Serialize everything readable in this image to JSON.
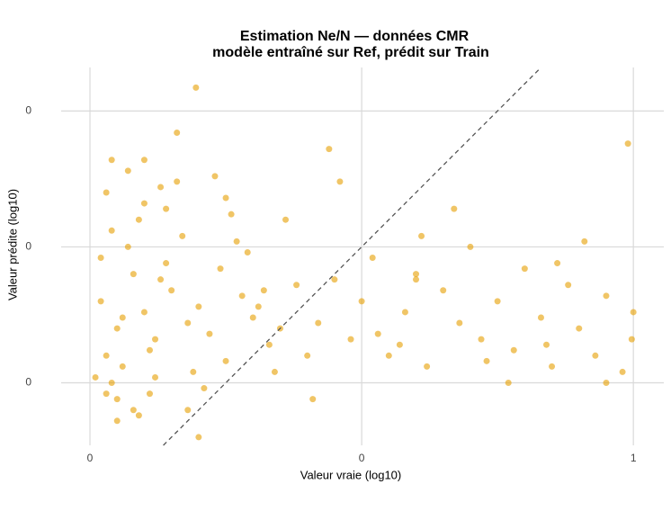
{
  "chart_data": {
    "type": "scatter",
    "title": "Estimation Ne/N — données CMR",
    "subtitle": "modèle entraîné sur Ref, prédit sur Train",
    "x_label": "Valeur vraie (log10)",
    "y_label": "Valeur prédite (log10)",
    "xlim": [
      -0.053,
      1.056
    ],
    "ylim": [
      0.135,
      0.83
    ],
    "xticks": [
      {
        "value": 0,
        "label": "0"
      },
      {
        "value": 0.5,
        "label": "0"
      },
      {
        "value": 1,
        "label": "1"
      }
    ],
    "yticks": [
      {
        "value": 0.25,
        "label": "0"
      },
      {
        "value": 0.5,
        "label": "0"
      },
      {
        "value": 0.75,
        "label": "0"
      }
    ],
    "grid": true,
    "identity_line": true,
    "color": "#E69F00",
    "x": [
      0.195,
      0.04,
      0.02,
      0.05,
      0.03,
      0.08,
      0.1,
      0.12,
      0.04,
      0.07,
      0.15,
      0.18,
      0.06,
      0.09,
      0.11,
      0.14,
      0.2,
      0.22,
      0.25,
      0.03,
      0.05,
      0.13,
      0.17,
      0.28,
      0.3,
      0.33,
      0.08,
      0.1,
      0.19,
      0.24,
      0.35,
      0.38,
      0.4,
      0.02,
      0.06,
      0.12,
      0.16,
      0.21,
      0.27,
      0.31,
      0.42,
      0.45,
      0.48,
      0.5,
      0.52,
      0.55,
      0.58,
      0.6,
      0.62,
      0.65,
      0.68,
      0.7,
      0.72,
      0.75,
      0.78,
      0.8,
      0.83,
      0.85,
      0.88,
      0.9,
      0.93,
      0.95,
      0.98,
      1.0,
      0.04,
      0.09,
      0.14,
      0.23,
      0.29,
      0.36,
      0.44,
      0.53,
      0.61,
      0.73,
      0.86,
      0.99,
      0.01,
      0.07,
      0.11,
      0.18,
      0.26,
      0.34,
      0.46,
      0.57,
      0.67,
      0.77,
      0.91,
      0.997,
      0.05,
      0.16,
      0.32,
      0.41,
      0.2,
      0.1,
      0.03,
      0.25,
      0.6,
      0.84,
      0.95,
      0.13
    ],
    "y": [
      0.793,
      0.66,
      0.4,
      0.35,
      0.3,
      0.45,
      0.38,
      0.33,
      0.25,
      0.5,
      0.42,
      0.36,
      0.28,
      0.55,
      0.31,
      0.47,
      0.39,
      0.34,
      0.29,
      0.6,
      0.22,
      0.44,
      0.52,
      0.41,
      0.37,
      0.32,
      0.2,
      0.58,
      0.27,
      0.46,
      0.35,
      0.43,
      0.3,
      0.48,
      0.37,
      0.26,
      0.62,
      0.24,
      0.51,
      0.39,
      0.36,
      0.44,
      0.33,
      0.4,
      0.48,
      0.3,
      0.38,
      0.45,
      0.28,
      0.42,
      0.36,
      0.5,
      0.33,
      0.4,
      0.31,
      0.46,
      0.37,
      0.28,
      0.43,
      0.35,
      0.3,
      0.41,
      0.27,
      0.38,
      0.53,
      0.19,
      0.57,
      0.63,
      0.49,
      0.55,
      0.68,
      0.34,
      0.52,
      0.29,
      0.47,
      0.69,
      0.26,
      0.64,
      0.23,
      0.2,
      0.56,
      0.27,
      0.62,
      0.32,
      0.57,
      0.25,
      0.51,
      0.33,
      0.18,
      0.71,
      0.42,
      0.22,
      0.15,
      0.66,
      0.23,
      0.59,
      0.44,
      0.32,
      0.25,
      0.61
    ]
  }
}
